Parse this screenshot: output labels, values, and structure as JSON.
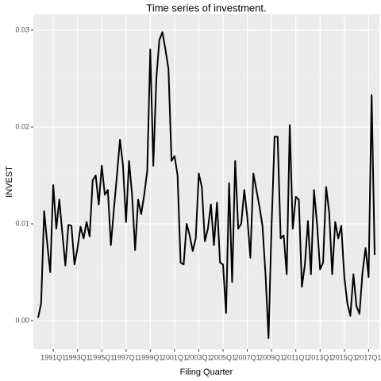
{
  "chart_data": {
    "type": "line",
    "title": "Time series of investment.",
    "x_label": "Filing Quarter",
    "y_label": "INVEST",
    "categories": [
      null,
      null,
      null,
      null,
      null,
      "1991Q1",
      null,
      null,
      null,
      null,
      null,
      null,
      null,
      "1993Q1",
      null,
      null,
      null,
      null,
      null,
      null,
      null,
      "1995Q1",
      null,
      null,
      null,
      null,
      null,
      null,
      null,
      "1997Q1",
      null,
      null,
      null,
      null,
      null,
      null,
      null,
      "1999Q1",
      null,
      null,
      null,
      null,
      null,
      null,
      null,
      "2001Q1",
      null,
      null,
      null,
      null,
      null,
      null,
      null,
      "2003Q1",
      null,
      null,
      null,
      null,
      null,
      null,
      null,
      "2005Q1",
      null,
      null,
      null,
      null,
      null,
      null,
      null,
      "2007Q1",
      null,
      null,
      null,
      null,
      null,
      null,
      null,
      "2009Q1",
      null,
      null,
      null,
      null,
      null,
      null,
      null,
      "2011Q1",
      null,
      null,
      null,
      null,
      null,
      null,
      null,
      "2013Q1",
      null,
      null,
      null,
      null,
      null,
      null,
      null,
      "2015Q1",
      null,
      null,
      null,
      null,
      null,
      null,
      null,
      "2017Q1",
      null,
      null
    ],
    "series": [
      {
        "name": "INVEST",
        "color": "#000000",
        "values": [
          0.0003,
          0.0018,
          0.0113,
          0.008,
          0.005,
          0.014,
          0.0095,
          0.0125,
          0.009,
          0.0057,
          0.0099,
          0.0098,
          0.0058,
          0.0075,
          0.0097,
          0.0085,
          0.0102,
          0.0087,
          0.0145,
          0.015,
          0.012,
          0.016,
          0.013,
          0.0135,
          0.0078,
          0.0115,
          0.015,
          0.0187,
          0.016,
          0.0102,
          0.0165,
          0.013,
          0.0073,
          0.0125,
          0.011,
          0.013,
          0.0155,
          0.028,
          0.016,
          0.025,
          0.029,
          0.0298,
          0.028,
          0.026,
          0.0165,
          0.017,
          0.015,
          0.006,
          0.0058,
          0.01,
          0.0088,
          0.0072,
          0.0085,
          0.0152,
          0.0138,
          0.0082,
          0.0095,
          0.012,
          0.0078,
          0.0122,
          0.006,
          0.0058,
          0.0008,
          0.0142,
          0.004,
          0.0165,
          0.0095,
          0.01,
          0.0135,
          0.0107,
          0.0065,
          0.0152,
          0.0135,
          0.0118,
          0.0098,
          0.0048,
          -0.0018,
          0.0098,
          0.019,
          0.019,
          0.0085,
          0.0088,
          0.0048,
          0.0202,
          0.0095,
          0.0128,
          0.0125,
          0.0035,
          0.0058,
          0.0103,
          0.0048,
          0.0135,
          0.01,
          0.0053,
          0.006,
          0.0138,
          0.0112,
          0.0048,
          0.0102,
          0.0085,
          0.0098,
          0.0045,
          0.0018,
          0.0005,
          0.0048,
          0.0015,
          0.0007,
          0.005,
          0.0075,
          0.0045,
          0.0233,
          0.0068
        ]
      }
    ],
    "ylim": [
      -0.00295,
      0.03164
    ],
    "yticks": [
      {
        "value": 0,
        "label": "0.00"
      },
      0.01,
      0.02,
      0.03
    ],
    "grid": true
  }
}
